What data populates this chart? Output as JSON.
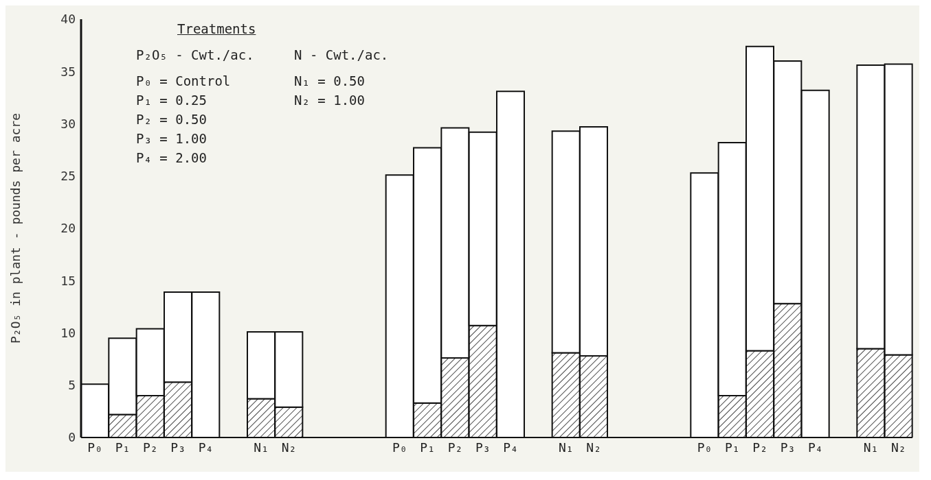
{
  "chart_data": {
    "type": "bar",
    "stacked": true,
    "ylabel": "P₂O₅ in plant - pounds per acre",
    "categories": [
      "P₀",
      "P₁",
      "P₂",
      "P₃",
      "P₄",
      null,
      "N₁",
      "N₂",
      null,
      null,
      null,
      "P₀",
      "P₁",
      "P₂",
      "P₃",
      "P₄",
      null,
      "N₁",
      "N₂",
      null,
      null,
      null,
      "P₀",
      "P₁",
      "P₂",
      "P₃",
      "P₄",
      null,
      "N₁",
      "N₂"
    ],
    "series": [
      {
        "color": "#111111",
        "values": [
          null,
          2.2,
          4.0,
          5.3,
          null,
          null,
          3.7,
          2.9,
          null,
          null,
          null,
          null,
          3.3,
          7.6,
          10.7,
          null,
          null,
          8.1,
          7.8,
          null,
          null,
          null,
          null,
          4.0,
          8.3,
          12.8,
          null,
          null,
          8.5,
          7.9
        ]
      },
      {
        "color": "#ffffff",
        "values": [
          5.1,
          7.3,
          6.4,
          8.6,
          13.9,
          null,
          6.4,
          7.2,
          null,
          null,
          null,
          25.1,
          24.4,
          22.0,
          18.5,
          33.1,
          null,
          21.2,
          21.9,
          null,
          null,
          null,
          25.3,
          24.2,
          29.1,
          23.2,
          33.2,
          null,
          27.1,
          27.8
        ]
      }
    ],
    "ylim": [
      0,
      40
    ],
    "yticks": [
      0,
      5,
      10,
      15,
      20,
      25,
      30,
      35,
      40
    ],
    "annotations": [
      "Treatments",
      "P₂O₅ - Cwt./ac.",
      "P₀ = Control",
      "P₁ = 0.25",
      "P₂ = 0.50",
      "P₃ = 1.00",
      "P₄ = 2.00",
      "N - Cwt./ac.",
      "N₁ = 0.50",
      "N₂ = 1.00"
    ]
  }
}
